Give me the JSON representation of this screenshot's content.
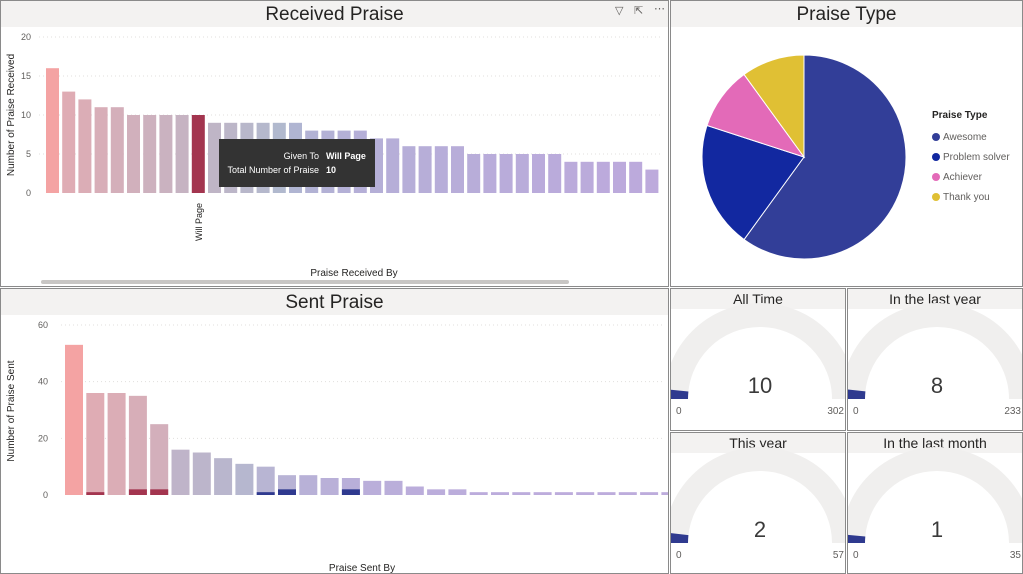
{
  "received": {
    "title": "Received Praise",
    "ylabel": "Number of Praise Received",
    "xlabel": "Praise Received By",
    "highlight_label": "Will Page",
    "icons": [
      "filter-icon",
      "focus-mode-icon",
      "more-options-icon"
    ]
  },
  "tooltip": {
    "given_to_label": "Given To",
    "given_to_value": "Will Page",
    "total_label": "Total Number of Praise",
    "total_value": "10"
  },
  "sent": {
    "title": "Sent Praise",
    "ylabel": "Number of Praise Sent",
    "xlabel": "Praise Sent By"
  },
  "praise_type": {
    "title": "Praise Type",
    "legend_title": "Praise Type"
  },
  "gauges": [
    {
      "title": "All Time",
      "value": "10",
      "min": "0",
      "max": "302",
      "fraction": 0.033
    },
    {
      "title": "In the last year",
      "value": "8",
      "min": "0",
      "max": "233",
      "fraction": 0.034
    },
    {
      "title": "This year",
      "value": "2",
      "min": "0",
      "max": "57",
      "fraction": 0.035
    },
    {
      "title": "In the last month",
      "value": "1",
      "min": "0",
      "max": "35",
      "fraction": 0.029
    }
  ],
  "chart_data": [
    {
      "type": "bar",
      "title": "Received Praise",
      "xlabel": "Praise Received By",
      "ylabel": "Number of Praise Received",
      "ylim": [
        0,
        20
      ],
      "yticks": [
        0,
        5,
        10,
        15,
        20
      ],
      "highlight_index": 9,
      "values": [
        16,
        13,
        12,
        11,
        11,
        10,
        10,
        10,
        10,
        10,
        9,
        9,
        9,
        9,
        9,
        9,
        8,
        8,
        8,
        8,
        7,
        7,
        6,
        6,
        6,
        6,
        5,
        5,
        5,
        5,
        5,
        5,
        4,
        4,
        4,
        4,
        4,
        3
      ],
      "colors": [
        "#f4a3a3",
        "#dfacb4",
        "#dbadb6",
        "#d8aeb8",
        "#d4afba",
        "#d1b0bc",
        "#cdb1be",
        "#cab2c0",
        "#c6b3c2",
        "#a3354f",
        "#bfb5c6",
        "#bcb6c8",
        "#b8b7ca",
        "#b5b8cc",
        "#b1b9ce",
        "#b0b5d2",
        "#b2b2d4",
        "#b3b1d5",
        "#b4b0d6",
        "#b5afd7",
        "#b5afd7",
        "#b6aed8",
        "#b6aed8",
        "#b7aed8",
        "#b7add9",
        "#b8add9",
        "#b8add9",
        "#b9acda",
        "#b9acda",
        "#b9acda",
        "#baabdb",
        "#baabdb",
        "#bbabdb",
        "#bbabdb",
        "#bcaadc",
        "#bcaadc",
        "#bcaadc",
        "#bdaadc"
      ]
    },
    {
      "type": "bar",
      "title": "Sent Praise",
      "xlabel": "Praise Sent By",
      "ylabel": "Number of Praise Sent",
      "ylim": [
        0,
        60
      ],
      "yticks": [
        0,
        20,
        40,
        60
      ],
      "values": [
        53,
        36,
        36,
        35,
        25,
        16,
        15,
        13,
        11,
        10,
        7,
        7,
        6,
        6,
        5,
        5,
        3,
        2,
        2,
        1,
        1,
        1,
        1,
        1,
        1,
        1,
        1,
        1,
        1
      ],
      "overlay": [
        0,
        1,
        0,
        2,
        2,
        0,
        0,
        0,
        0,
        1,
        2,
        0,
        0,
        2,
        0,
        0,
        0,
        0,
        0,
        0,
        0,
        0,
        0,
        0,
        0,
        0,
        0,
        0,
        0
      ],
      "overlay_colors": [
        "#a3354f",
        "#a3354f",
        "#a3354f",
        "#a3354f",
        "#a3354f",
        "#a3354f",
        "#a3354f",
        "#a3354f",
        "#a3354f",
        "#2f3a8f",
        "#2f3a8f",
        "#2f3a8f",
        "#2f3a8f",
        "#2f3a8f",
        "#2f3a8f",
        "#2f3a8f",
        "#2f3a8f",
        "#2f3a8f",
        "#2f3a8f",
        "#2f3a8f",
        "#2f3a8f",
        "#2f3a8f",
        "#2f3a8f",
        "#2f3a8f",
        "#2f3a8f",
        "#2f3a8f",
        "#2f3a8f",
        "#2f3a8f",
        "#2f3a8f"
      ],
      "colors": [
        "#f4a3a3",
        "#dfacb4",
        "#dbadb6",
        "#d7aeb8",
        "#d3afbb",
        "#bfb4c9",
        "#bcb5cb",
        "#b9b6cd",
        "#b6b7cf",
        "#b8b5d3",
        "#b8b3d5",
        "#b8b1d7",
        "#b9b0d8",
        "#b9afd9",
        "#baaeda",
        "#baaeda",
        "#bbaddb",
        "#bbaddb",
        "#bbaddb",
        "#bcacdc",
        "#bcacdc",
        "#bcacdc",
        "#bdacdc",
        "#bdacdc",
        "#bdacdc",
        "#bdacdc",
        "#bdacdc",
        "#bdacdc",
        "#bdacdc"
      ]
    },
    {
      "type": "pie",
      "title": "Praise Type",
      "labels": [
        "Awesome",
        "Problem solver",
        "Achiever",
        "Thank you"
      ],
      "values": [
        60,
        20,
        10,
        10
      ],
      "colors": [
        "#323e98",
        "#1228a0",
        "#e36ab8",
        "#e0c034"
      ]
    }
  ]
}
